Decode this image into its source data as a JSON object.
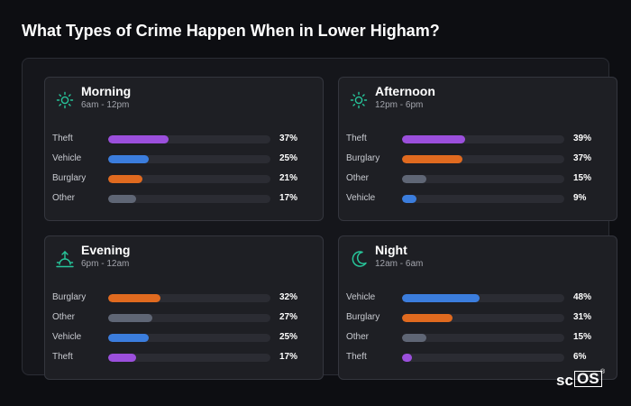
{
  "page": {
    "title": "What Types of Crime Happen When in Lower Higham?"
  },
  "brand": {
    "prefix": "sc",
    "boxed": "OS",
    "mark": "®"
  },
  "colors": {
    "Theft": "#9b4fdc",
    "Vehicle": "#3b7ddd",
    "Burglary": "#e06a1f",
    "Other": "#5f6675",
    "icon": "#27c59a"
  },
  "chart_data": {
    "type": "bar",
    "title": "What Types of Crime Happen When in Lower Higham?",
    "orientation": "horizontal",
    "value_unit": "%",
    "xlim": [
      0,
      100
    ],
    "panels": [
      {
        "name": "Morning",
        "range": "6am - 12pm",
        "icon": "sun-icon",
        "categories": [
          "Theft",
          "Vehicle",
          "Burglary",
          "Other"
        ],
        "values": [
          37,
          25,
          21,
          17
        ],
        "labels": [
          "37%",
          "25%",
          "21%",
          "17%"
        ]
      },
      {
        "name": "Afternoon",
        "range": "12pm - 6pm",
        "icon": "sun-icon",
        "categories": [
          "Theft",
          "Burglary",
          "Other",
          "Vehicle"
        ],
        "values": [
          39,
          37,
          15,
          9
        ],
        "labels": [
          "39%",
          "37%",
          "15%",
          "9%"
        ]
      },
      {
        "name": "Evening",
        "range": "6pm - 12am",
        "icon": "sunset-icon",
        "categories": [
          "Burglary",
          "Other",
          "Vehicle",
          "Theft"
        ],
        "values": [
          32,
          27,
          25,
          17
        ],
        "labels": [
          "32%",
          "27%",
          "25%",
          "17%"
        ]
      },
      {
        "name": "Night",
        "range": "12am - 6am",
        "icon": "moon-icon",
        "categories": [
          "Vehicle",
          "Burglary",
          "Other",
          "Theft"
        ],
        "values": [
          48,
          31,
          15,
          6
        ],
        "labels": [
          "48%",
          "31%",
          "15%",
          "6%"
        ]
      }
    ]
  }
}
